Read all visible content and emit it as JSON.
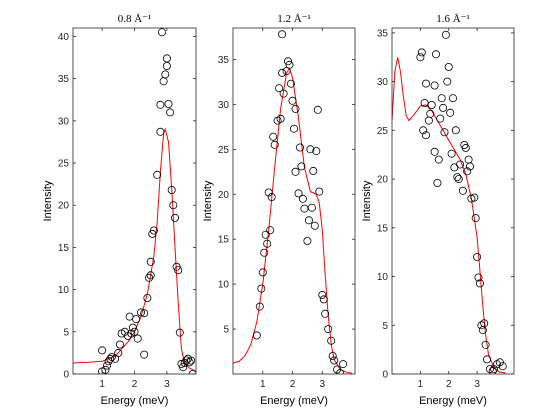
{
  "chart_data": [
    {
      "type": "scatter",
      "title": "0.8 Å⁻¹",
      "xlabel": "Energy (meV)",
      "ylabel": "Intensity",
      "xlim": [
        0.1,
        3.9
      ],
      "ylim": [
        0,
        41
      ],
      "xticks": [
        1,
        2,
        3
      ],
      "yticks": [
        0,
        5,
        10,
        15,
        20,
        25,
        30,
        35,
        40
      ],
      "grid": false,
      "points": [
        [
          1.0,
          0.3
        ],
        [
          1.1,
          0.5
        ],
        [
          1.15,
          1.0
        ],
        [
          1.2,
          1.5
        ],
        [
          1.3,
          2.0
        ],
        [
          1.4,
          1.8
        ],
        [
          1.5,
          2.5
        ],
        [
          1.6,
          4.8
        ],
        [
          1.7,
          5.0
        ],
        [
          1.8,
          4.5
        ],
        [
          1.85,
          6.8
        ],
        [
          1.9,
          4.8
        ],
        [
          2.0,
          5.0
        ],
        [
          2.05,
          6.5
        ],
        [
          2.1,
          4.2
        ],
        [
          2.2,
          7.3
        ],
        [
          2.3,
          2.3
        ],
        [
          2.3,
          7.2
        ],
        [
          2.4,
          9.0
        ],
        [
          2.45,
          11.4
        ],
        [
          2.5,
          11.7
        ],
        [
          2.5,
          13.3
        ],
        [
          2.55,
          16.6
        ],
        [
          2.6,
          17.0
        ],
        [
          2.7,
          23.6
        ],
        [
          2.8,
          28.7
        ],
        [
          2.8,
          31.9
        ],
        [
          2.85,
          40.5
        ],
        [
          2.9,
          34.7
        ],
        [
          2.95,
          35.5
        ],
        [
          3.0,
          36.5
        ],
        [
          3.0,
          37.4
        ],
        [
          3.05,
          32.0
        ],
        [
          3.1,
          31.0
        ],
        [
          3.15,
          21.8
        ],
        [
          3.2,
          20.0
        ],
        [
          3.25,
          18.5
        ],
        [
          3.3,
          12.7
        ],
        [
          3.35,
          12.3
        ],
        [
          3.4,
          4.9
        ],
        [
          3.45,
          1.2
        ],
        [
          3.5,
          0.8
        ],
        [
          3.55,
          1.3
        ],
        [
          3.6,
          1.6
        ],
        [
          3.65,
          1.8
        ],
        [
          3.7,
          1.4
        ],
        [
          3.75,
          1.6
        ],
        [
          3.8,
          0.0
        ],
        [
          1.0,
          2.8
        ],
        [
          1.25,
          1.8
        ],
        [
          1.55,
          3.5
        ],
        [
          1.95,
          5.5
        ]
      ],
      "fit_color": "#ff0000",
      "fit": [
        [
          0.1,
          1.3
        ],
        [
          0.6,
          1.4
        ],
        [
          1.0,
          1.5
        ],
        [
          1.4,
          2.1
        ],
        [
          1.8,
          3.8
        ],
        [
          2.0,
          5.0
        ],
        [
          2.2,
          6.8
        ],
        [
          2.4,
          9.5
        ],
        [
          2.6,
          14.0
        ],
        [
          2.7,
          18.0
        ],
        [
          2.8,
          24.0
        ],
        [
          2.9,
          28.5
        ],
        [
          2.95,
          29.0
        ],
        [
          3.05,
          27.5
        ],
        [
          3.15,
          22.0
        ],
        [
          3.25,
          15.0
        ],
        [
          3.35,
          8.5
        ],
        [
          3.45,
          3.0
        ],
        [
          3.55,
          1.2
        ],
        [
          3.7,
          0.7
        ],
        [
          3.9,
          0.3
        ]
      ]
    },
    {
      "type": "scatter",
      "title": "1.2 Å⁻¹",
      "xlabel": "Energy (meV)",
      "ylabel": "Intensity",
      "xlim": [
        0,
        4.1
      ],
      "ylim": [
        0,
        38.5
      ],
      "xticks": [
        1,
        2,
        3
      ],
      "yticks": [
        5,
        10,
        15,
        20,
        25,
        30,
        35
      ],
      "grid": false,
      "points": [
        [
          0.8,
          4.3
        ],
        [
          0.9,
          7.5
        ],
        [
          0.95,
          9.5
        ],
        [
          1.0,
          11.3
        ],
        [
          1.05,
          13.5
        ],
        [
          1.1,
          15.5
        ],
        [
          1.15,
          14.5
        ],
        [
          1.2,
          20.2
        ],
        [
          1.3,
          19.7
        ],
        [
          1.35,
          26.4
        ],
        [
          1.4,
          25.5
        ],
        [
          1.5,
          28.2
        ],
        [
          1.55,
          31.8
        ],
        [
          1.6,
          28.4
        ],
        [
          1.65,
          33.5
        ],
        [
          1.65,
          37.8
        ],
        [
          1.7,
          31.2
        ],
        [
          1.8,
          33.7
        ],
        [
          1.85,
          34.8
        ],
        [
          1.9,
          34.4
        ],
        [
          1.95,
          32.3
        ],
        [
          2.0,
          30.4
        ],
        [
          2.05,
          27.3
        ],
        [
          2.1,
          29.5
        ],
        [
          2.2,
          20.1
        ],
        [
          2.25,
          25.2
        ],
        [
          2.3,
          23.1
        ],
        [
          2.35,
          19.5
        ],
        [
          2.4,
          18.4
        ],
        [
          2.5,
          14.8
        ],
        [
          2.55,
          17.1
        ],
        [
          2.6,
          25.0
        ],
        [
          2.65,
          18.5
        ],
        [
          2.7,
          22.6
        ],
        [
          2.8,
          24.8
        ],
        [
          2.85,
          29.4
        ],
        [
          2.9,
          20.3
        ],
        [
          3.0,
          8.8
        ],
        [
          3.05,
          8.3
        ],
        [
          3.1,
          6.7
        ],
        [
          3.2,
          5.0
        ],
        [
          3.3,
          3.7
        ],
        [
          3.35,
          2.0
        ],
        [
          3.4,
          1.5
        ],
        [
          3.5,
          0.5
        ],
        [
          3.6,
          0.1
        ],
        [
          3.7,
          1.1
        ],
        [
          1.25,
          16.0
        ],
        [
          2.1,
          22.5
        ],
        [
          2.75,
          16.5
        ]
      ],
      "fit_color": "#ff0000",
      "fit": [
        [
          0.0,
          1.2
        ],
        [
          0.2,
          1.4
        ],
        [
          0.4,
          2.0
        ],
        [
          0.6,
          3.3
        ],
        [
          0.8,
          5.8
        ],
        [
          1.0,
          10.0
        ],
        [
          1.2,
          16.0
        ],
        [
          1.4,
          23.0
        ],
        [
          1.6,
          29.5
        ],
        [
          1.8,
          33.5
        ],
        [
          1.9,
          34.0
        ],
        [
          2.0,
          33.0
        ],
        [
          2.2,
          28.5
        ],
        [
          2.4,
          23.0
        ],
        [
          2.6,
          20.3
        ],
        [
          2.8,
          20.0
        ],
        [
          2.9,
          19.0
        ],
        [
          3.0,
          16.0
        ],
        [
          3.1,
          11.0
        ],
        [
          3.2,
          6.5
        ],
        [
          3.3,
          3.3
        ],
        [
          3.4,
          1.6
        ],
        [
          3.6,
          0.5
        ],
        [
          3.8,
          0.2
        ],
        [
          4.0,
          0.1
        ]
      ]
    },
    {
      "type": "scatter",
      "title": "1.6 Å⁻¹",
      "xlabel": "Energy (meV)",
      "ylabel": "Intensity",
      "xlim": [
        0,
        4.3
      ],
      "ylim": [
        0,
        35.5
      ],
      "xticks": [
        1,
        2,
        3
      ],
      "yticks": [
        0,
        5,
        10,
        15,
        20,
        25,
        30,
        35
      ],
      "grid": false,
      "points": [
        [
          1.0,
          32.5
        ],
        [
          1.05,
          33.0
        ],
        [
          1.1,
          25.0
        ],
        [
          1.15,
          27.8
        ],
        [
          1.2,
          24.5
        ],
        [
          1.2,
          29.8
        ],
        [
          1.3,
          26.0
        ],
        [
          1.35,
          26.7
        ],
        [
          1.4,
          27.6
        ],
        [
          1.5,
          22.8
        ],
        [
          1.5,
          29.6
        ],
        [
          1.55,
          32.8
        ],
        [
          1.6,
          19.6
        ],
        [
          1.65,
          22.0
        ],
        [
          1.7,
          26.2
        ],
        [
          1.75,
          28.3
        ],
        [
          1.8,
          27.3
        ],
        [
          1.85,
          24.8
        ],
        [
          1.9,
          34.8
        ],
        [
          1.95,
          30.0
        ],
        [
          2.0,
          31.5
        ],
        [
          2.05,
          26.8
        ],
        [
          2.1,
          22.6
        ],
        [
          2.15,
          28.3
        ],
        [
          2.2,
          21.2
        ],
        [
          2.3,
          20.2
        ],
        [
          2.35,
          20.0
        ],
        [
          2.4,
          21.5
        ],
        [
          2.5,
          18.8
        ],
        [
          2.55,
          23.5
        ],
        [
          2.6,
          23.2
        ],
        [
          2.65,
          20.8
        ],
        [
          2.7,
          22.0
        ],
        [
          2.75,
          21.3
        ],
        [
          2.8,
          18.0
        ],
        [
          2.9,
          18.1
        ],
        [
          2.95,
          16.0
        ],
        [
          3.0,
          12.0
        ],
        [
          3.05,
          9.9
        ],
        [
          3.1,
          9.3
        ],
        [
          3.15,
          5.0
        ],
        [
          3.2,
          4.5
        ],
        [
          3.25,
          5.2
        ],
        [
          3.3,
          3.0
        ],
        [
          3.35,
          1.5
        ],
        [
          3.45,
          0.5
        ],
        [
          3.55,
          0.3
        ],
        [
          3.6,
          0.5
        ],
        [
          3.7,
          1.0
        ],
        [
          3.8,
          1.2
        ],
        [
          3.9,
          0.8
        ],
        [
          2.25,
          25.0
        ]
      ],
      "fit_color": "#ff0000",
      "fit": [
        [
          0.0,
          26.0
        ],
        [
          0.1,
          31.0
        ],
        [
          0.2,
          32.5
        ],
        [
          0.3,
          31.0
        ],
        [
          0.4,
          28.5
        ],
        [
          0.5,
          26.5
        ],
        [
          0.6,
          26.0
        ],
        [
          0.8,
          26.7
        ],
        [
          1.0,
          27.5
        ],
        [
          1.2,
          27.6
        ],
        [
          1.4,
          27.0
        ],
        [
          1.6,
          26.0
        ],
        [
          1.8,
          25.0
        ],
        [
          2.0,
          24.0
        ],
        [
          2.2,
          23.0
        ],
        [
          2.4,
          22.0
        ],
        [
          2.6,
          20.5
        ],
        [
          2.8,
          18.0
        ],
        [
          3.0,
          14.0
        ],
        [
          3.1,
          10.5
        ],
        [
          3.2,
          7.0
        ],
        [
          3.3,
          4.0
        ],
        [
          3.4,
          2.0
        ],
        [
          3.6,
          0.6
        ],
        [
          3.8,
          0.2
        ],
        [
          4.0,
          0.1
        ]
      ]
    }
  ]
}
